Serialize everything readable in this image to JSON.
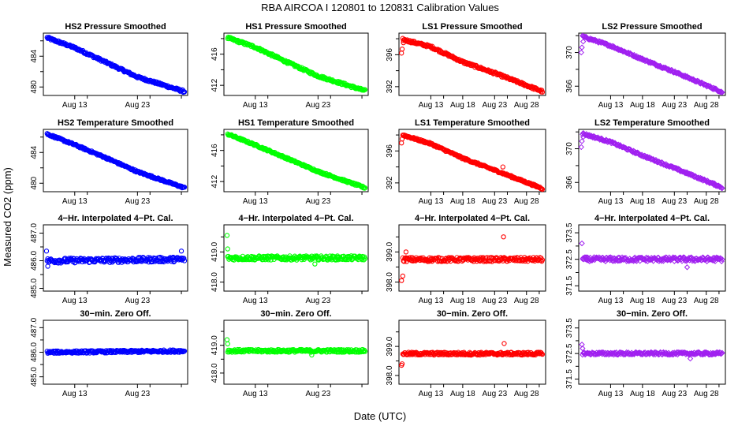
{
  "figure": {
    "title": "RBA   AIRCOA I   120801 to 120831   Calibration Values",
    "xlabel": "Date (UTC)",
    "ylabel": "Measured CO2 (ppm)"
  },
  "chart_data": [
    {
      "type": "scatter",
      "title": "HS2 Pressure Smoothed",
      "color": "#0000ff",
      "marker": "circle",
      "xlim": [
        8,
        31
      ],
      "ylim": [
        478.9,
        487.0
      ],
      "xticks": [
        13,
        23
      ],
      "xtick_labels": [
        "Aug 13",
        "Aug 23"
      ],
      "yticks": [
        480,
        484
      ],
      "ytick_labels": [
        "480",
        "484"
      ],
      "trend": [
        [
          8.6,
          486.4
        ],
        [
          13,
          485.1
        ],
        [
          18,
          483.2
        ],
        [
          23,
          481.3
        ],
        [
          30.5,
          479.4
        ]
      ],
      "noise": 0.15
    },
    {
      "type": "scatter",
      "title": "HS1 Pressure Smoothed",
      "color": "#00ff00",
      "marker": "circle",
      "xlim": [
        8,
        31
      ],
      "ylim": [
        410.7,
        418.7
      ],
      "xticks": [
        13,
        23
      ],
      "xtick_labels": [
        "Aug 13",
        "Aug 23"
      ],
      "yticks": [
        412,
        416
      ],
      "ytick_labels": [
        "412",
        "416"
      ],
      "trend": [
        [
          8.6,
          418.1
        ],
        [
          13,
          416.9
        ],
        [
          18,
          415.0
        ],
        [
          23,
          413.2
        ],
        [
          30.5,
          411.3
        ]
      ],
      "noise": 0.15
    },
    {
      "type": "scatter",
      "title": "LS1 Pressure Smoothed",
      "color": "#ff0000",
      "marker": "circle",
      "xlim": [
        8,
        31
      ],
      "ylim": [
        390.9,
        398.7
      ],
      "xticks": [
        13,
        18,
        23,
        28
      ],
      "xtick_labels": [
        "Aug 13",
        "Aug 18",
        "Aug 23",
        "Aug 28"
      ],
      "yticks": [
        392,
        396
      ],
      "ytick_labels": [
        "392",
        "396"
      ],
      "trend": [
        [
          8.6,
          397.9
        ],
        [
          13,
          397.0
        ],
        [
          18,
          395.1
        ],
        [
          23,
          393.7
        ],
        [
          30.5,
          391.4
        ]
      ],
      "noise": 0.15,
      "outliers": [
        [
          8.4,
          396.2
        ],
        [
          8.5,
          396.7
        ],
        [
          8.7,
          397.5
        ]
      ]
    },
    {
      "type": "scatter",
      "title": "LS2 Pressure Smoothed",
      "color": "#a020f0",
      "marker": "diamond",
      "xlim": [
        8,
        31
      ],
      "ylim": [
        364.9,
        372.3
      ],
      "xticks": [
        13,
        18,
        23,
        28
      ],
      "xtick_labels": [
        "Aug 13",
        "Aug 18",
        "Aug 23",
        "Aug 28"
      ],
      "yticks": [
        366,
        370
      ],
      "ytick_labels": [
        "366",
        "370"
      ],
      "trend": [
        [
          8.6,
          371.9
        ],
        [
          13,
          370.8
        ],
        [
          18,
          369.2
        ],
        [
          23,
          367.7
        ],
        [
          30.5,
          365.3
        ]
      ],
      "noise": 0.12,
      "outliers": [
        [
          8.4,
          370.0
        ],
        [
          8.5,
          370.6
        ],
        [
          8.7,
          371.3
        ]
      ]
    },
    {
      "type": "scatter",
      "title": "HS2 Temperature Smoothed",
      "color": "#0000ff",
      "marker": "circle",
      "xlim": [
        8,
        31
      ],
      "ylim": [
        478.9,
        487.0
      ],
      "xticks": [
        13,
        23
      ],
      "xtick_labels": [
        "Aug 13",
        "Aug 23"
      ],
      "yticks": [
        480,
        484
      ],
      "ytick_labels": [
        "480",
        "484"
      ],
      "trend": [
        [
          8.6,
          486.4
        ],
        [
          13,
          485.0
        ],
        [
          18,
          483.3
        ],
        [
          23,
          481.5
        ],
        [
          30.5,
          479.4
        ]
      ],
      "noise": 0.12
    },
    {
      "type": "scatter",
      "title": "HS1 Temperature Smoothed",
      "color": "#00ff00",
      "marker": "circle",
      "xlim": [
        8,
        31
      ],
      "ylim": [
        410.7,
        418.7
      ],
      "xticks": [
        13,
        23
      ],
      "xtick_labels": [
        "Aug 13",
        "Aug 23"
      ],
      "yticks": [
        412,
        416
      ],
      "ytick_labels": [
        "412",
        "416"
      ],
      "trend": [
        [
          8.6,
          418.1
        ],
        [
          13,
          416.7
        ],
        [
          18,
          415.0
        ],
        [
          23,
          413.3
        ],
        [
          30.5,
          411.2
        ]
      ],
      "noise": 0.12
    },
    {
      "type": "scatter",
      "title": "LS1 Temperature Smoothed",
      "color": "#ff0000",
      "marker": "circle",
      "xlim": [
        8,
        31
      ],
      "ylim": [
        390.9,
        398.7
      ],
      "xticks": [
        13,
        18,
        23,
        28
      ],
      "xtick_labels": [
        "Aug 13",
        "Aug 18",
        "Aug 23",
        "Aug 28"
      ],
      "yticks": [
        392,
        396
      ],
      "ytick_labels": [
        "392",
        "396"
      ],
      "trend": [
        [
          8.6,
          398.0
        ],
        [
          13,
          396.9
        ],
        [
          18,
          395.1
        ],
        [
          23,
          393.6
        ],
        [
          30.5,
          391.3
        ]
      ],
      "noise": 0.12,
      "outliers": [
        [
          8.4,
          397.0
        ],
        [
          8.5,
          397.5
        ],
        [
          24.3,
          394.0
        ]
      ]
    },
    {
      "type": "scatter",
      "title": "LS2 Temperature Smoothed",
      "color": "#a020f0",
      "marker": "diamond",
      "xlim": [
        8,
        31
      ],
      "ylim": [
        364.9,
        372.3
      ],
      "xticks": [
        13,
        18,
        23,
        28
      ],
      "xtick_labels": [
        "Aug 13",
        "Aug 18",
        "Aug 23",
        "Aug 28"
      ],
      "yticks": [
        366,
        370
      ],
      "ytick_labels": [
        "366",
        "370"
      ],
      "trend": [
        [
          8.6,
          371.8
        ],
        [
          13,
          370.8
        ],
        [
          18,
          369.2
        ],
        [
          23,
          367.7
        ],
        [
          30.5,
          365.4
        ]
      ],
      "noise": 0.12,
      "outliers": [
        [
          8.4,
          370.2
        ],
        [
          8.5,
          370.9
        ],
        [
          8.7,
          371.4
        ]
      ]
    },
    {
      "type": "scatter",
      "title": "4−Hr. Interpolated 4−Pt. Cal.",
      "color": "#0000ff",
      "marker": "circle",
      "xlim": [
        8,
        31
      ],
      "ylim": [
        484.9,
        487.3
      ],
      "xticks": [
        13,
        23
      ],
      "xtick_labels": [
        "Aug 13",
        "Aug 23"
      ],
      "yticks": [
        485.0,
        486.0,
        487.0
      ],
      "ytick_labels": [
        "485.0",
        "486.0",
        "487.0"
      ],
      "trend": [
        [
          8.6,
          486.0
        ],
        [
          30.5,
          486.05
        ]
      ],
      "noise": 0.09,
      "outliers": [
        [
          8.5,
          486.35
        ],
        [
          8.7,
          485.8
        ],
        [
          30.0,
          486.35
        ]
      ]
    },
    {
      "type": "scatter",
      "title": "4−Hr. Interpolated 4−Pt. Cal.",
      "color": "#00ff00",
      "marker": "circle",
      "xlim": [
        8,
        31
      ],
      "ylim": [
        417.7,
        419.9
      ],
      "xticks": [
        13,
        23
      ],
      "xtick_labels": [
        "Aug 13",
        "Aug 23"
      ],
      "yticks": [
        418.0,
        419.0
      ],
      "ytick_labels": [
        "418.0",
        "419.0"
      ],
      "trend": [
        [
          8.6,
          418.8
        ],
        [
          30.5,
          418.8
        ]
      ],
      "noise": 0.07,
      "outliers": [
        [
          8.5,
          419.55
        ],
        [
          8.6,
          419.1
        ],
        [
          22.5,
          418.6
        ]
      ]
    },
    {
      "type": "scatter",
      "title": "4−Hr. Interpolated 4−Pt. Cal.",
      "color": "#ff0000",
      "marker": "circle",
      "xlim": [
        8,
        31
      ],
      "ylim": [
        397.7,
        399.9
      ],
      "xticks": [
        13,
        18,
        23,
        28
      ],
      "xtick_labels": [
        "Aug 13",
        "Aug 18",
        "Aug 23",
        "Aug 28"
      ],
      "yticks": [
        398.0,
        399.0
      ],
      "ytick_labels": [
        "398.0",
        "399.0"
      ],
      "trend": [
        [
          8.6,
          398.75
        ],
        [
          30.5,
          398.75
        ]
      ],
      "noise": 0.07,
      "outliers": [
        [
          8.4,
          398.05
        ],
        [
          8.6,
          398.2
        ],
        [
          9.1,
          399.0
        ],
        [
          24.4,
          399.5
        ]
      ]
    },
    {
      "type": "scatter",
      "title": "4−Hr. Interpolated 4−Pt. Cal.",
      "color": "#a020f0",
      "marker": "diamond",
      "xlim": [
        8,
        31
      ],
      "ylim": [
        371.3,
        373.8
      ],
      "xticks": [
        13,
        18,
        23,
        28
      ],
      "xtick_labels": [
        "Aug 13",
        "Aug 18",
        "Aug 23",
        "Aug 28"
      ],
      "yticks": [
        371.5,
        372.5,
        373.5
      ],
      "ytick_labels": [
        "371.5",
        "372.5",
        "373.5"
      ],
      "trend": [
        [
          8.6,
          372.5
        ],
        [
          30.5,
          372.5
        ]
      ],
      "noise": 0.08,
      "outliers": [
        [
          8.5,
          373.1
        ],
        [
          25.0,
          372.2
        ]
      ]
    },
    {
      "type": "scatter",
      "title": "30−min. Zero Off.",
      "color": "#0000ff",
      "marker": "circle",
      "xlim": [
        8,
        31
      ],
      "ylim": [
        484.7,
        487.3
      ],
      "xticks": [
        13,
        23
      ],
      "xtick_labels": [
        "Aug 13",
        "Aug 23"
      ],
      "yticks": [
        485.0,
        486.0,
        487.0
      ],
      "ytick_labels": [
        "485.0",
        "486.0",
        "487.0"
      ],
      "trend": [
        [
          8.6,
          486.0
        ],
        [
          30.5,
          486.05
        ]
      ],
      "noise": 0.05
    },
    {
      "type": "scatter",
      "title": "30−min. Zero Off.",
      "color": "#00ff00",
      "marker": "circle",
      "xlim": [
        8,
        31
      ],
      "ylim": [
        417.6,
        419.9
      ],
      "xticks": [
        13,
        23
      ],
      "xtick_labels": [
        "Aug 13",
        "Aug 23"
      ],
      "yticks": [
        418.0,
        419.0
      ],
      "ytick_labels": [
        "418.0",
        "419.0"
      ],
      "trend": [
        [
          8.6,
          418.8
        ],
        [
          30.5,
          418.8
        ]
      ],
      "noise": 0.05,
      "outliers": [
        [
          8.5,
          419.2
        ],
        [
          8.6,
          419.05
        ],
        [
          22.0,
          418.65
        ]
      ]
    },
    {
      "type": "scatter",
      "title": "30−min. Zero Off.",
      "color": "#ff0000",
      "marker": "circle",
      "xlim": [
        8,
        31
      ],
      "ylim": [
        397.7,
        399.9
      ],
      "xticks": [
        13,
        18,
        23,
        28
      ],
      "xtick_labels": [
        "Aug 13",
        "Aug 18",
        "Aug 23",
        "Aug 28"
      ],
      "yticks": [
        398.0,
        399.0
      ],
      "ytick_labels": [
        "398.0",
        "399.0"
      ],
      "trend": [
        [
          8.6,
          398.75
        ],
        [
          30.5,
          398.75
        ]
      ],
      "noise": 0.05,
      "outliers": [
        [
          8.4,
          398.35
        ],
        [
          8.5,
          398.4
        ],
        [
          24.5,
          399.1
        ]
      ]
    },
    {
      "type": "scatter",
      "title": "30−min. Zero Off.",
      "color": "#a020f0",
      "marker": "diamond",
      "xlim": [
        8,
        31
      ],
      "ylim": [
        371.3,
        373.8
      ],
      "xticks": [
        13,
        18,
        23,
        28
      ],
      "xtick_labels": [
        "Aug 13",
        "Aug 18",
        "Aug 23",
        "Aug 28"
      ],
      "yticks": [
        371.5,
        372.5,
        373.5
      ],
      "ytick_labels": [
        "371.5",
        "372.5",
        "373.5"
      ],
      "trend": [
        [
          8.6,
          372.5
        ],
        [
          30.5,
          372.5
        ]
      ],
      "noise": 0.05,
      "outliers": [
        [
          8.5,
          372.85
        ],
        [
          8.6,
          372.7
        ],
        [
          25.5,
          372.3
        ]
      ]
    }
  ]
}
